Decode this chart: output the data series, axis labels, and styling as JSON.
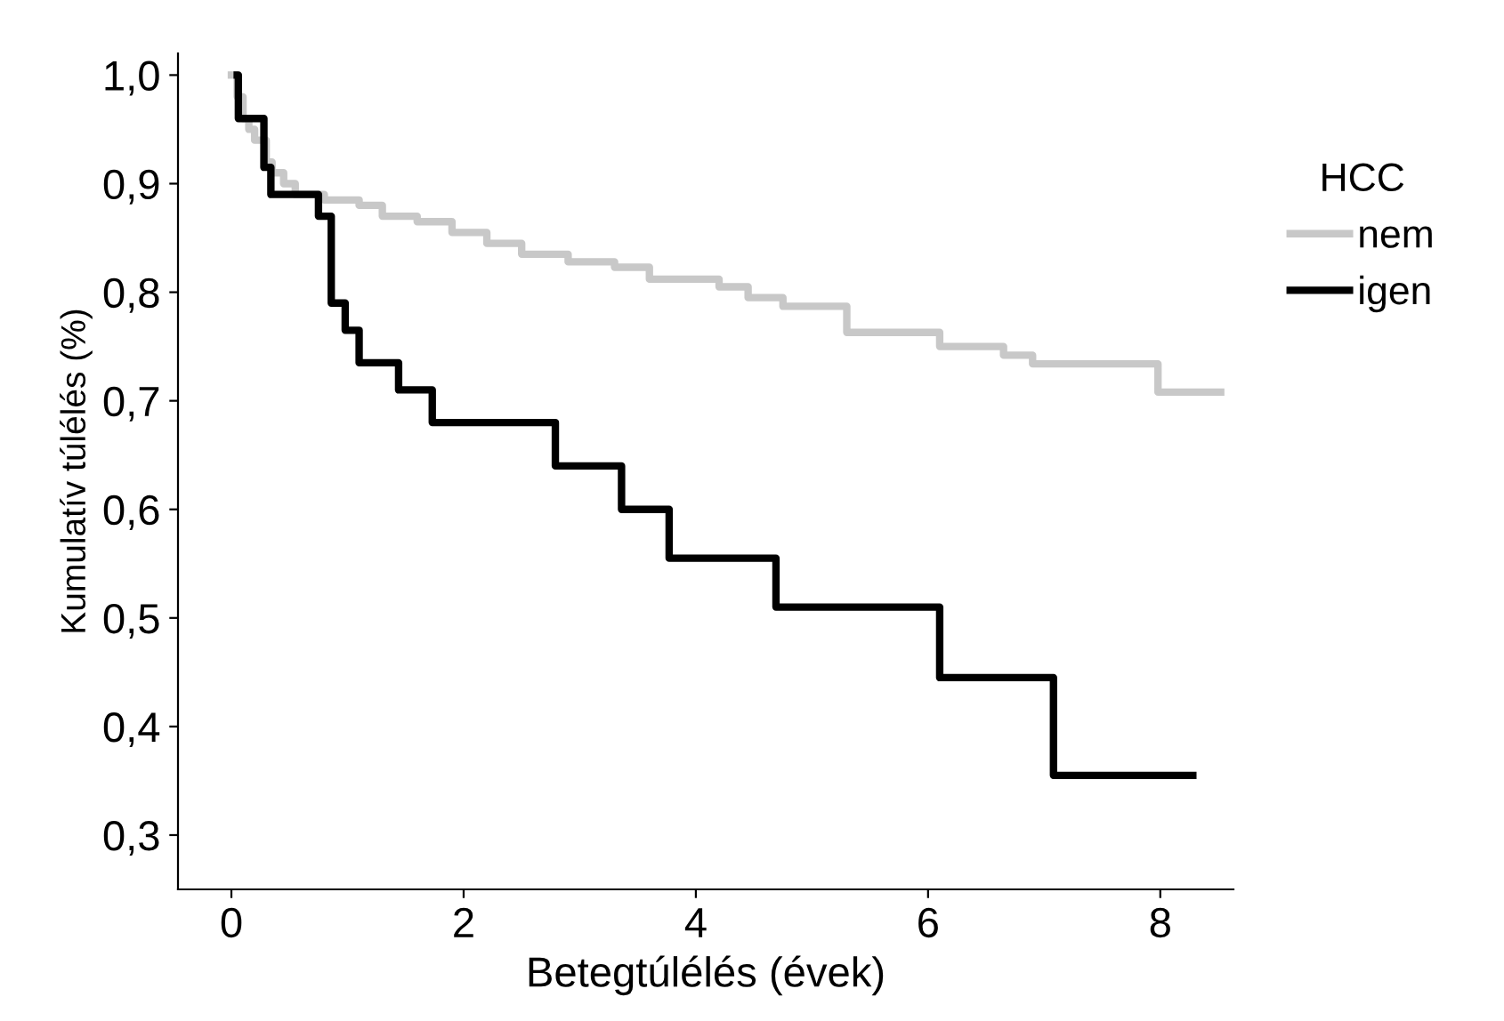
{
  "chart_data": {
    "type": "step",
    "xlabel": "Betegtúlélés (évek)",
    "ylabel": "Kumulatív túlélés (%)",
    "legend_title": "HCC",
    "legend": "right",
    "grid": false,
    "xlim": [
      -0.46,
      8.63
    ],
    "ylim": [
      0.25,
      1.02
    ],
    "xticks": [
      0,
      2,
      4,
      6,
      8
    ],
    "yticks": [
      {
        "value": 0.3,
        "label": "0,3"
      },
      {
        "value": 0.4,
        "label": "0,4"
      },
      {
        "value": 0.5,
        "label": "0,5"
      },
      {
        "value": 0.6,
        "label": "0,6"
      },
      {
        "value": 0.7,
        "label": "0,7"
      },
      {
        "value": 0.8,
        "label": "0,8"
      },
      {
        "value": 0.9,
        "label": "0,9"
      },
      {
        "value": 1.0,
        "label": "1,0"
      }
    ],
    "series": [
      {
        "name": "nem",
        "color": "#c8c8c8",
        "x": [
          0.0,
          0.05,
          0.1,
          0.15,
          0.2,
          0.3,
          0.35,
          0.45,
          0.55,
          0.8,
          1.1,
          1.3,
          1.6,
          1.9,
          2.2,
          2.5,
          2.9,
          3.3,
          3.6,
          4.2,
          4.45,
          4.75,
          5.3,
          6.1,
          6.65,
          6.9,
          7.98,
          8.52
        ],
        "values": [
          1.0,
          0.98,
          0.96,
          0.95,
          0.94,
          0.92,
          0.91,
          0.9,
          0.89,
          0.885,
          0.88,
          0.87,
          0.865,
          0.855,
          0.845,
          0.835,
          0.828,
          0.823,
          0.812,
          0.805,
          0.795,
          0.787,
          0.763,
          0.75,
          0.742,
          0.734,
          0.708,
          0.708
        ]
      },
      {
        "name": "igen",
        "color": "#000000",
        "x": [
          0.05,
          0.06,
          0.28,
          0.34,
          0.75,
          0.86,
          0.98,
          1.1,
          1.44,
          1.73,
          2.79,
          3.36,
          3.77,
          4.69,
          6.1,
          7.08,
          8.28
        ],
        "values": [
          1.0,
          0.96,
          0.915,
          0.89,
          0.87,
          0.79,
          0.765,
          0.735,
          0.71,
          0.68,
          0.64,
          0.6,
          0.555,
          0.51,
          0.445,
          0.355,
          0.355
        ]
      }
    ]
  }
}
